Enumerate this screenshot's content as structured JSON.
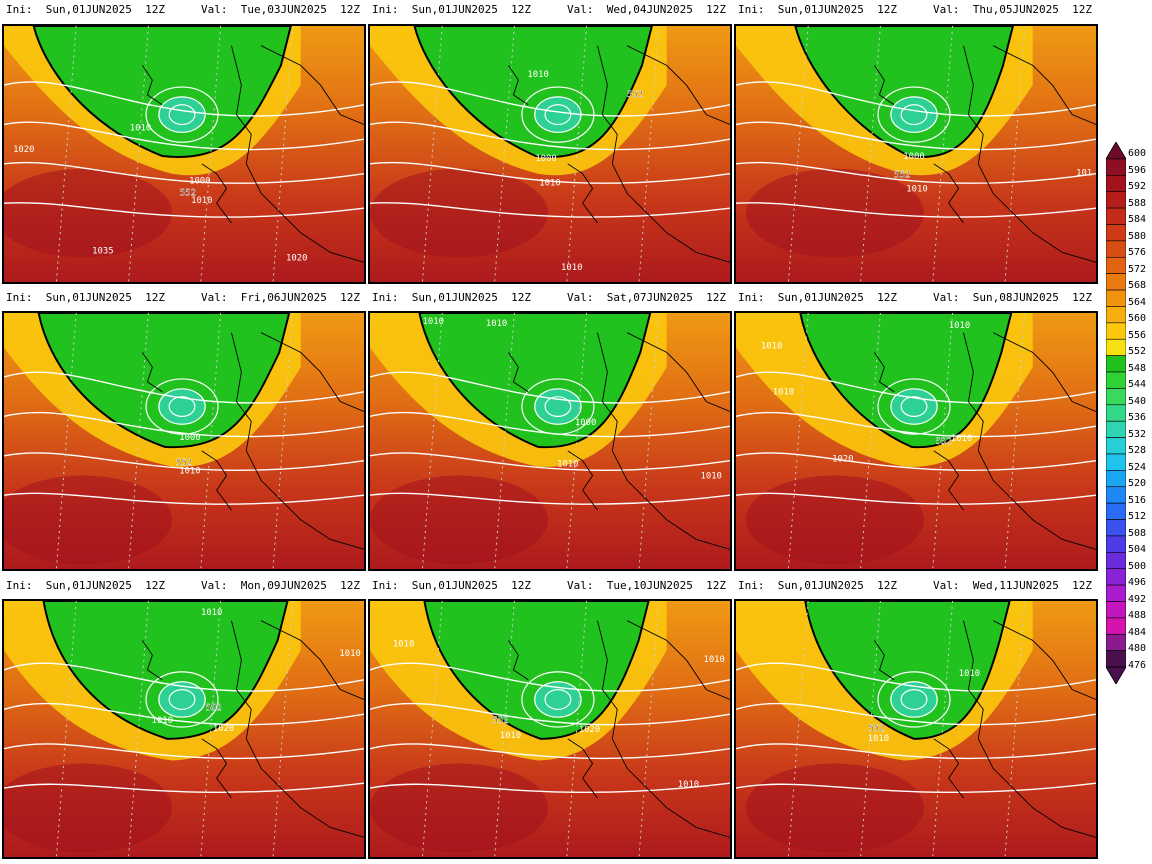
{
  "panels": [
    {
      "init": "Ini:  Sun,01JUN2025  12Z",
      "valid": "Val:  Tue,03JUN2025  12Z",
      "labels": [
        "1010",
        "1020",
        "1000",
        "552",
        "1010",
        "1035",
        "1020",
        "1010"
      ]
    },
    {
      "init": "Ini:  Sun,01JUN2025  12Z",
      "valid": "Val:  Wed,04JUN2025  12Z",
      "labels": [
        "1010",
        "552",
        "1000",
        "1010",
        "1010"
      ]
    },
    {
      "init": "Ini:  Sun,01JUN2025  12Z",
      "valid": "Val:  Thu,05JUN2025  12Z",
      "labels": [
        "1000",
        "552",
        "1010",
        "101"
      ]
    },
    {
      "init": "Ini:  Sun,01JUN2025  12Z",
      "valid": "Val:  Fri,06JUN2025  12Z",
      "labels": [
        "1000",
        "552",
        "1010"
      ]
    },
    {
      "init": "Ini:  Sun,01JUN2025  12Z",
      "valid": "Val:  Sat,07JUN2025  12Z",
      "labels": [
        "1010",
        "1010",
        "1000",
        "1010",
        "1010"
      ]
    },
    {
      "init": "Ini:  Sun,01JUN2025  12Z",
      "valid": "Val:  Sun,08JUN2025  12Z",
      "labels": [
        "1010",
        "1010",
        "1010",
        "1020",
        "552",
        "1010"
      ]
    },
    {
      "init": "Ini:  Sun,01JUN2025  12Z",
      "valid": "Val:  Mon,09JUN2025  12Z",
      "labels": [
        "1010",
        "1010",
        "1010",
        "552",
        "1020"
      ]
    },
    {
      "init": "Ini:  Sun,01JUN2025  12Z",
      "valid": "Val:  Tue,10JUN2025  12Z",
      "labels": [
        "1010",
        "1010",
        "552",
        "1010",
        "1020",
        "1010"
      ]
    },
    {
      "init": "Ini:  Sun,01JUN2025  12Z",
      "valid": "Val:  Wed,11JUN2025  12Z",
      "labels": [
        "1010",
        "552",
        "1010"
      ]
    }
  ],
  "colorbar": {
    "levels": [
      "600",
      "596",
      "592",
      "588",
      "584",
      "580",
      "576",
      "572",
      "568",
      "564",
      "560",
      "556",
      "552",
      "548",
      "544",
      "540",
      "536",
      "532",
      "528",
      "524",
      "520",
      "516",
      "512",
      "508",
      "504",
      "500",
      "496",
      "492",
      "488",
      "484",
      "480",
      "476"
    ],
    "colors": [
      "#6e0a2a",
      "#8c0f24",
      "#a3131e",
      "#b51d1b",
      "#c42b19",
      "#cf3b17",
      "#d94e14",
      "#e26412",
      "#ea7b10",
      "#f1930e",
      "#f7ad0d",
      "#fbc80c",
      "#f6e011",
      "#22c21e",
      "#2ed235",
      "#3ad85c",
      "#34d889",
      "#2fd4b0",
      "#25cfd4",
      "#1fc3ec",
      "#1aa6f2",
      "#2088f4",
      "#2a6cf3",
      "#3a52ee",
      "#4e3ce6",
      "#6a2cdd",
      "#8a22d6",
      "#a91bcc",
      "#c316bf",
      "#d513ad",
      "#8a1a8e",
      "#4a104e"
    ]
  },
  "colors": {
    "background": "#ffffff",
    "frame": "#000000",
    "isobar": "#ffffff",
    "coast": "#000000",
    "line552": "#000000"
  }
}
